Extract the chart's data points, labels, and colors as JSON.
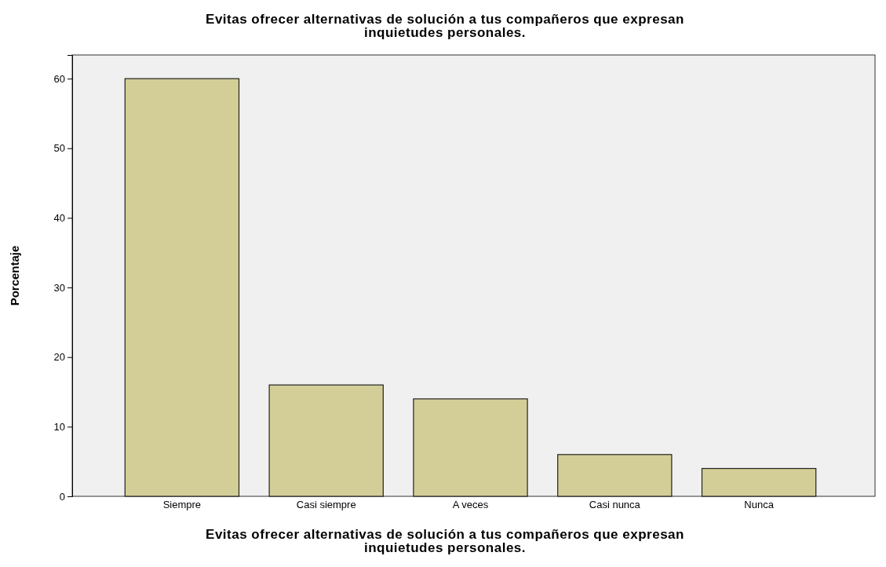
{
  "chart_data": {
    "type": "bar",
    "title": "Evitas ofrecer alternativas de solución a tus compañeros que expresan inquietudes personales.",
    "xlabel": "Evitas ofrecer alternativas de solución a tus compañeros que expresan inquietudes personales.",
    "ylabel": "Porcentaje",
    "categories": [
      "Siempre",
      "Casi siempre",
      "A veces",
      "Casi nunca",
      "Nunca"
    ],
    "values": [
      60,
      16,
      14,
      6,
      4
    ],
    "color": "#d3ce97",
    "ylim": [
      0,
      63.4
    ],
    "yticks": [
      0,
      10,
      20,
      30,
      40,
      50,
      60
    ],
    "grid": false
  }
}
